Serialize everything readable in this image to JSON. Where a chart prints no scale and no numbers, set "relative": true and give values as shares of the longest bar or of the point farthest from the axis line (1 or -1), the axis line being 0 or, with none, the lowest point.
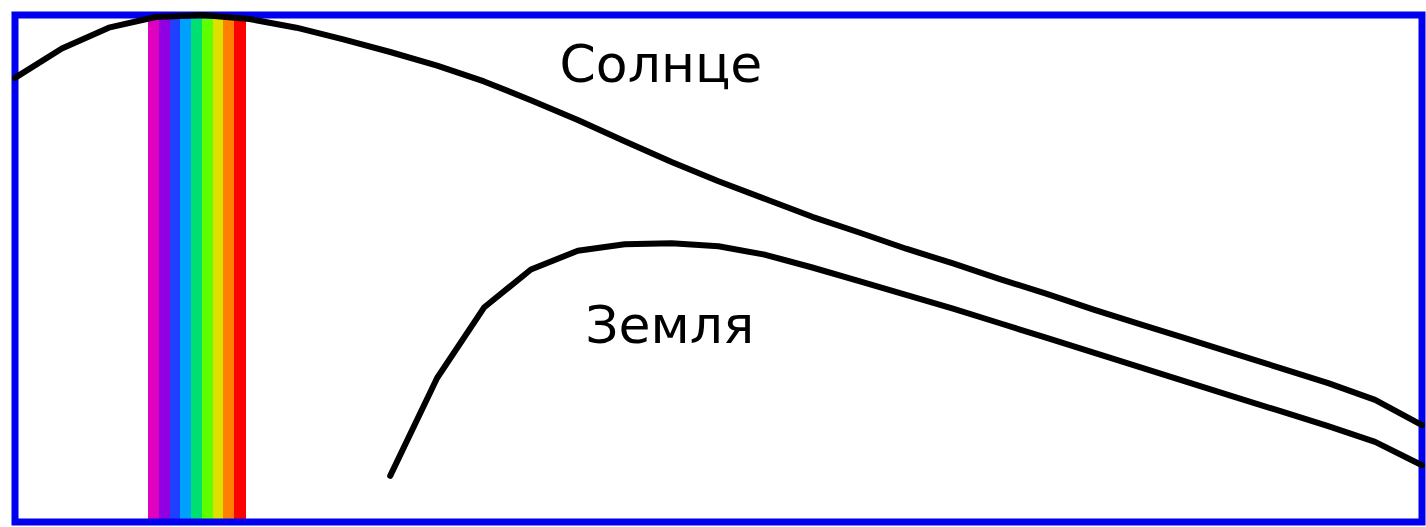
{
  "chart_data": {
    "type": "line",
    "relative": true,
    "categories": [
      null,
      null,
      null,
      null,
      null,
      null,
      null,
      null,
      null,
      null,
      null,
      null,
      null,
      null,
      null,
      null,
      null,
      null,
      null,
      null,
      null,
      null,
      null,
      null,
      null,
      null,
      null,
      null,
      null,
      null,
      null
    ],
    "series": [
      {
        "name": "Солнце",
        "color": "#000000",
        "values": [
          0.876,
          0.934,
          0.975,
          0.996,
          1,
          0.992,
          0.975,
          0.952,
          0.927,
          0.9,
          0.869,
          0.832,
          0.793,
          0.751,
          0.71,
          0.672,
          0.637,
          0.602,
          0.571,
          0.539,
          0.51,
          0.479,
          0.45,
          0.419,
          0.39,
          0.361,
          0.332,
          0.303,
          0.274,
          0.241,
          0.191
        ]
      },
      {
        "name": "Земля",
        "color": "#000000",
        "values": [
          null,
          null,
          null,
          null,
          null,
          null,
          null,
          null,
          0.091,
          0.284,
          0.423,
          0.498,
          0.535,
          0.548,
          0.55,
          0.544,
          0.527,
          0.502,
          0.475,
          0.448,
          0.421,
          0.392,
          0.363,
          0.334,
          0.305,
          0.276,
          0.247,
          0.218,
          0.189,
          0.158,
          0.112
        ]
      }
    ]
  }
}
